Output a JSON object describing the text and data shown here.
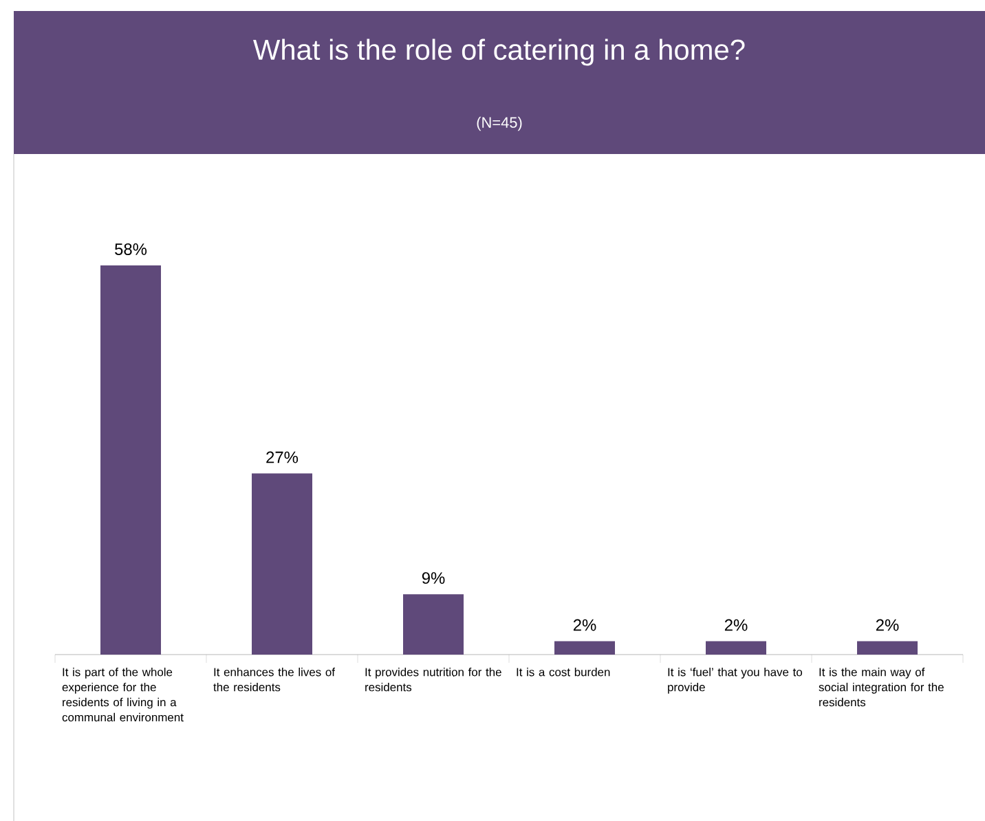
{
  "chart_data": {
    "type": "bar",
    "title": "What is the role of catering in a home?",
    "subtitle": "(N=45)",
    "categories": [
      "It is part of the whole experience for the residents of living in a communal environment",
      "It enhances the lives of the residents",
      "It provides nutrition for the residents",
      "It is a cost burden",
      "It is ‘fuel’ that you have to provide",
      "It is the main way of social integration for the residents"
    ],
    "values": [
      58,
      27,
      9,
      2,
      2,
      2
    ],
    "value_labels": [
      "58%",
      "27%",
      "9%",
      "2%",
      "2%",
      "2%"
    ],
    "color": "#5f497a"
  }
}
